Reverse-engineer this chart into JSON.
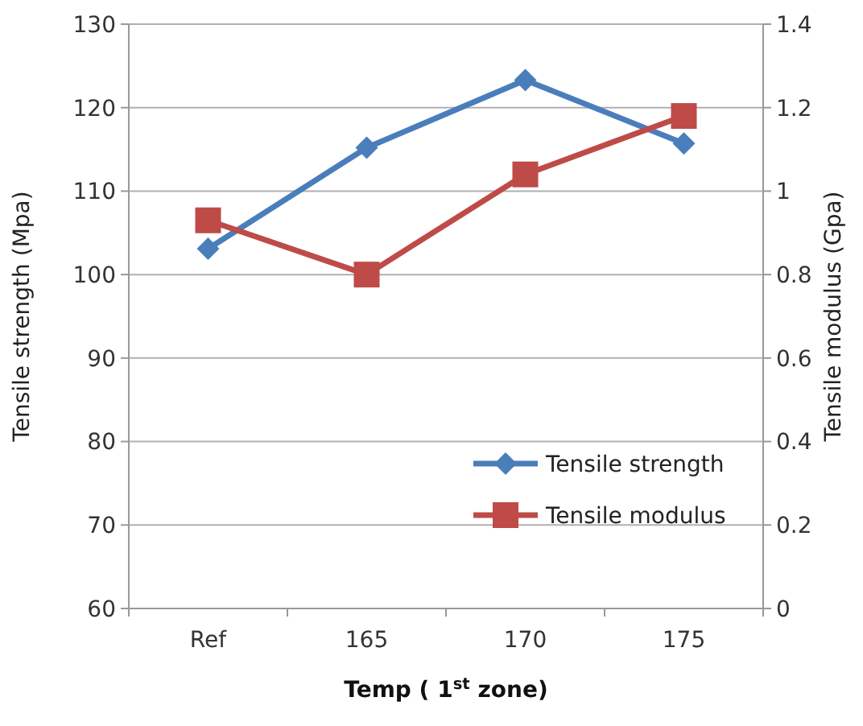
{
  "chart_data": {
    "type": "line",
    "xlabel": "Temp ( 1$^{st}$ zone)",
    "ylabel": "Tensile strength (Mpa)",
    "y2label": "Tensile modulus (Gpa)",
    "categories": [
      "Ref",
      "165",
      "170",
      "175"
    ],
    "series": [
      {
        "name": "Tensile strength",
        "color": "#4a7ebb",
        "marker": "diamond",
        "values": [
          103.1,
          115.2,
          123.3,
          115.7
        ]
      },
      {
        "name": "Tensile modulus",
        "color": "#be4b48",
        "marker": "square",
        "axis": "y2",
        "values": [
          0.93,
          0.8,
          1.04,
          1.18
        ]
      }
    ],
    "ylim": [
      60,
      130
    ],
    "yticks": [
      60,
      70,
      80,
      90,
      100,
      110,
      120,
      130
    ],
    "y2lim": [
      0,
      1.4
    ],
    "y2ticks": [
      0,
      0.2,
      0.4,
      0.6,
      0.8,
      1,
      1.2,
      1.4
    ],
    "grid": "y",
    "legend": "bottom right"
  }
}
